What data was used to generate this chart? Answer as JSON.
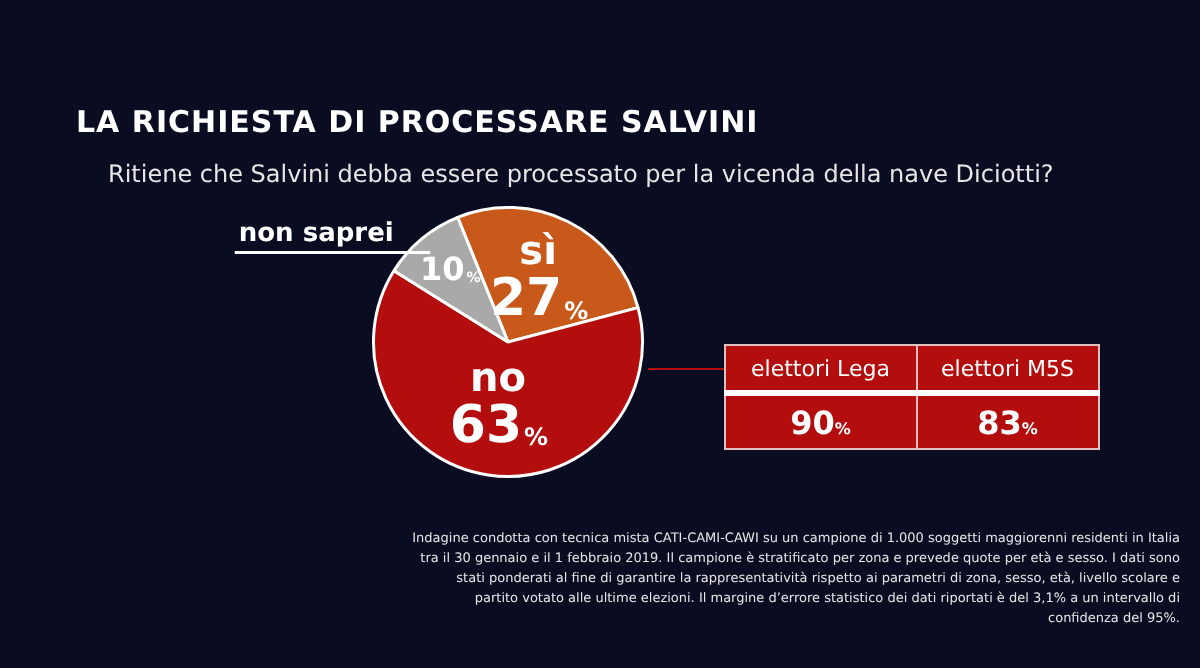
{
  "chart_data": [
    {
      "type": "pie",
      "title": "LA RICHIESTA DI PROCESSARE SALVINI",
      "subtitle": "Ritiene che Salvini debba essere processato per la vicenda della nave Diciotti?",
      "categories": [
        "sì",
        "no",
        "non saprei"
      ],
      "values": [
        27,
        63,
        10
      ],
      "colors": [
        "#c8591a",
        "#b30d0d",
        "#a9a9a9"
      ],
      "value_labels": [
        "27%",
        "63%",
        "10%"
      ],
      "legend": false,
      "annotations": [
        "Indagine condotta con tecnica mista CATI-CAMI-CAWI su un campione di 1.000 soggetti maggiorenni residenti in Italia tra il 30 gennaio e il 1 febbraio 2019. Il campione è stratificato per zona e prevede quote per età e sesso. I dati sono stati ponderati al fine di garantire la rappresentatività rispetto ai parametri di zona, sesso, età, livello scolare e partito votato alle ultime elezioni. Il margine d’errore statistico dei dati riportati è del 3,1% a un intervallo di confidenza del 95%."
      ]
    },
    {
      "type": "other",
      "categories": [
        "elettori Lega",
        "elettori M5S"
      ],
      "values": [
        90,
        83
      ],
      "value_labels": [
        "90%",
        "83%"
      ],
      "color": "#b30d0d"
    }
  ]
}
